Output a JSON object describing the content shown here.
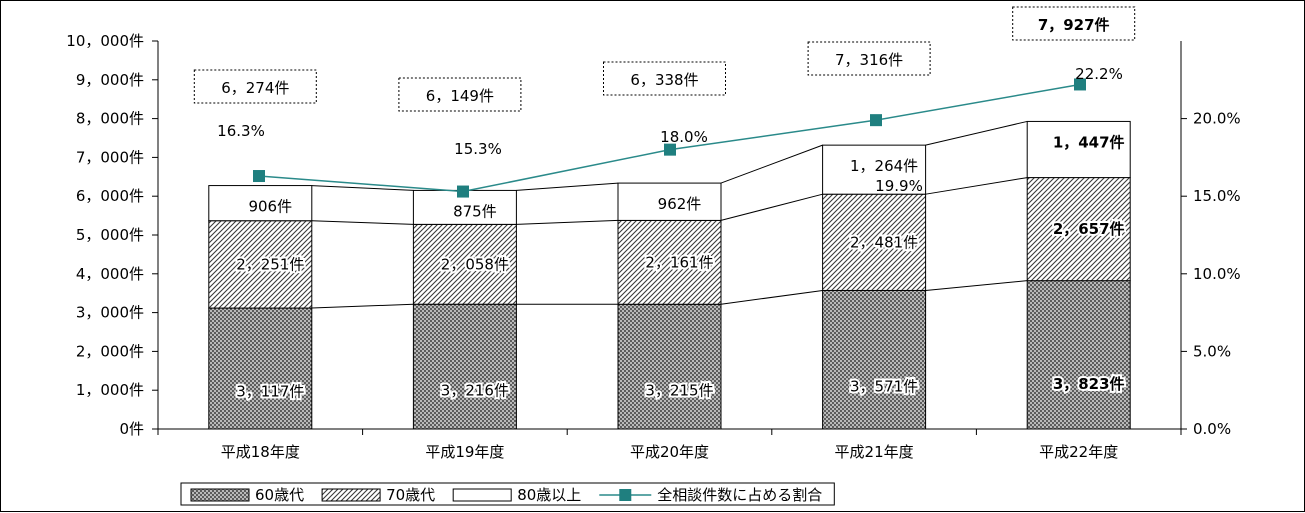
{
  "chart_data": {
    "type": "bar",
    "stacked": true,
    "categories": [
      "平成18年度",
      "平成19年度",
      "平成20年度",
      "平成21年度",
      "平成22年度"
    ],
    "series": [
      {
        "name": "60歳代",
        "values": [
          3117,
          3216,
          3215,
          3571,
          3823
        ],
        "labels": [
          "3，117件",
          "3，216件",
          "3，215件",
          "3，571件",
          "3，823件"
        ]
      },
      {
        "name": "70歳代",
        "values": [
          2251,
          2058,
          2161,
          2481,
          2657
        ],
        "labels": [
          "2，251件",
          "2，058件",
          "2，161件",
          "2，481件",
          "2，657件"
        ]
      },
      {
        "name": "80歳以上",
        "values": [
          906,
          875,
          962,
          1264,
          1447
        ],
        "labels": [
          "906件",
          "875件",
          "962件",
          "1，264件",
          "1，447件"
        ]
      }
    ],
    "totals": {
      "values": [
        6274,
        6149,
        6338,
        7316,
        7927
      ],
      "labels": [
        "6，274件",
        "6，149件",
        "6，338件",
        "7，316件",
        "7，927件"
      ]
    },
    "line_series": {
      "name": "全相談件数に占める割合",
      "values": [
        16.3,
        15.3,
        18.0,
        19.9,
        22.2
      ],
      "labels": [
        "16.3%",
        "15.3%",
        "18.0%",
        "19.9%",
        "22.2%"
      ]
    },
    "y_left": {
      "ylim": [
        0,
        10000
      ],
      "ticks": [
        0,
        1000,
        2000,
        3000,
        4000,
        5000,
        6000,
        7000,
        8000,
        9000,
        10000
      ],
      "tick_labels": [
        "0件",
        "1，000件",
        "2，000件",
        "3，000件",
        "4，000件",
        "5，000件",
        "6，000件",
        "7，000件",
        "8，000件",
        "9，000件",
        "10，000件"
      ]
    },
    "y_right": {
      "ylim": [
        0,
        25
      ],
      "ticks": [
        0,
        5,
        10,
        15,
        20
      ],
      "tick_labels": [
        "0.0%",
        "5.0%",
        "10.0%",
        "15.0%",
        "20.0%"
      ]
    },
    "legend_position": "bottom",
    "colors": {
      "line": "#2a8a8a",
      "marker": "#1f7f7f",
      "bar_outline": "#000000"
    }
  }
}
